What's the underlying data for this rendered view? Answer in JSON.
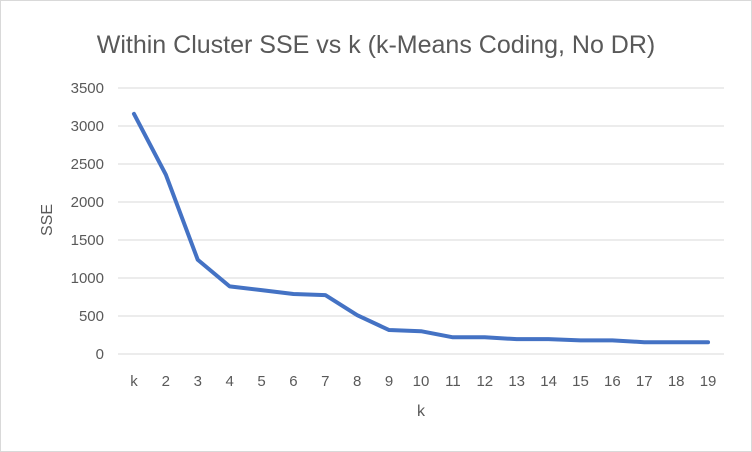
{
  "chart_data": {
    "type": "line",
    "title": "Within Cluster SSE vs k (k-Means Coding, No DR)",
    "xlabel": "k",
    "ylabel": "SSE",
    "categories": [
      "k",
      "2",
      "3",
      "4",
      "5",
      "6",
      "7",
      "8",
      "9",
      "10",
      "11",
      "12",
      "13",
      "14",
      "15",
      "16",
      "17",
      "18",
      "19"
    ],
    "series": [
      {
        "values": [
          3160,
          2360,
          1240,
          890,
          840,
          790,
          775,
          510,
          315,
          300,
          220,
          220,
          195,
          195,
          180,
          180,
          155,
          155,
          155
        ]
      }
    ],
    "yticks": [
      "0",
      "500",
      "1000",
      "1500",
      "2000",
      "2500",
      "3000",
      "3500"
    ],
    "ylim": [
      0,
      3500
    ],
    "grid": true,
    "legend": "none",
    "colors": {
      "series": "#4472c4",
      "grid": "#d9d9d9",
      "text": "#595959"
    }
  }
}
